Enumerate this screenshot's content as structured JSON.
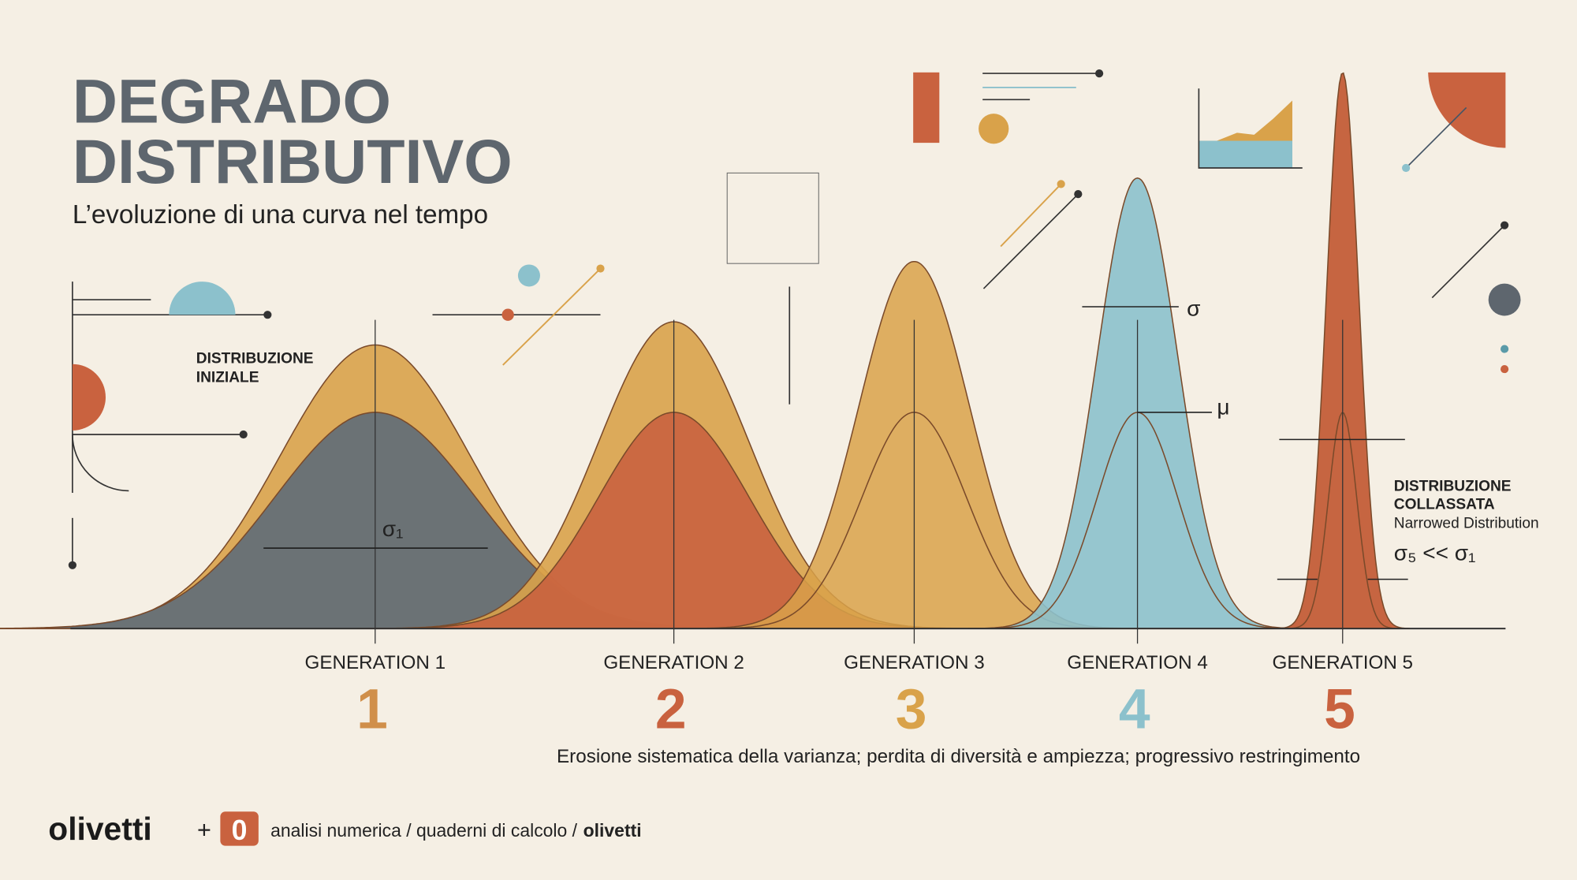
{
  "header": {
    "title": [
      "DEGRADO",
      "DISTRIBUTIVO"
    ],
    "subtitle": "L’evoluzione di una curva nel tempo"
  },
  "annotations": {
    "initial": [
      "DISTRIBUZIONE",
      "INIZIALE"
    ],
    "sigma_1": "σ₁",
    "sigma": "σ",
    "mu": "μ",
    "collapsed": [
      "DISTRIBUZIONE",
      "COLLASSATA"
    ],
    "collapsed_note": "Narrowed Distribution",
    "relation": "σ₅ << σ₁"
  },
  "generations": [
    {
      "label": "GENERATION 1",
      "number": "1"
    },
    {
      "label": "GENERATION 2",
      "number": "2"
    },
    {
      "label": "GENERATION 3",
      "number": "3"
    },
    {
      "label": "GENERATION 4",
      "number": "4"
    },
    {
      "label": "GENERATION 5",
      "number": "5"
    }
  ],
  "caption": "Erosione sistematica della varianza; perdita di diversità e ampiezza; progressivo restringimento",
  "footer": {
    "brand": "olivetti",
    "plus": "+",
    "logo": "0",
    "text": "analisi numerica / quaderni di calcolo /",
    "brand_bold": "olivetti"
  }
}
